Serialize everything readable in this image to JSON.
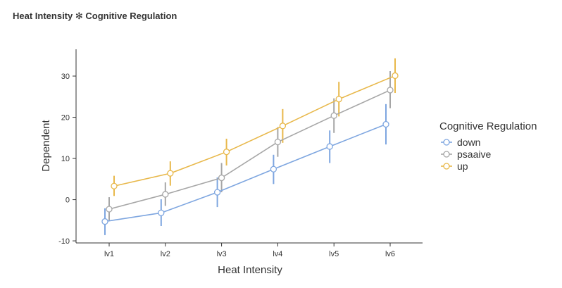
{
  "chart_data": {
    "type": "line",
    "title": "Heat Intensity ✻ Cognitive Regulation",
    "xlabel": "Heat Intensity",
    "ylabel": "Dependent",
    "categories": [
      "lv1",
      "lv2",
      "lv3",
      "lv4",
      "lv5",
      "lv6"
    ],
    "ylim": [
      -10.5,
      36.5
    ],
    "yticks": [
      -10,
      0,
      10,
      20,
      30
    ],
    "grid": false,
    "legend_title": "Cognitive Regulation",
    "legend_position": "right",
    "series": [
      {
        "name": "down",
        "color": "#7ea6e0",
        "values": [
          -5.3,
          -3.2,
          1.8,
          7.4,
          12.9,
          18.3
        ],
        "ci_low": [
          -8.6,
          -6.4,
          -1.8,
          3.8,
          8.9,
          13.4
        ],
        "ci_high": [
          -2.1,
          0.1,
          5.4,
          10.9,
          16.8,
          23.2
        ]
      },
      {
        "name": "psaaive",
        "color": "#a6a6a6",
        "values": [
          -2.3,
          1.3,
          5.3,
          14.0,
          20.4,
          26.6
        ],
        "ci_low": [
          -5.2,
          -1.5,
          1.8,
          10.4,
          16.2,
          22.2
        ],
        "ci_high": [
          0.6,
          4.2,
          8.9,
          17.6,
          24.6,
          31.2
        ]
      },
      {
        "name": "up",
        "color": "#e8b84a",
        "values": [
          3.3,
          6.4,
          11.6,
          17.9,
          24.4,
          30.1
        ],
        "ci_low": [
          0.9,
          3.4,
          8.3,
          13.8,
          20.2,
          25.9
        ],
        "ci_high": [
          5.8,
          9.3,
          14.8,
          22.0,
          28.6,
          34.3
        ]
      }
    ]
  }
}
